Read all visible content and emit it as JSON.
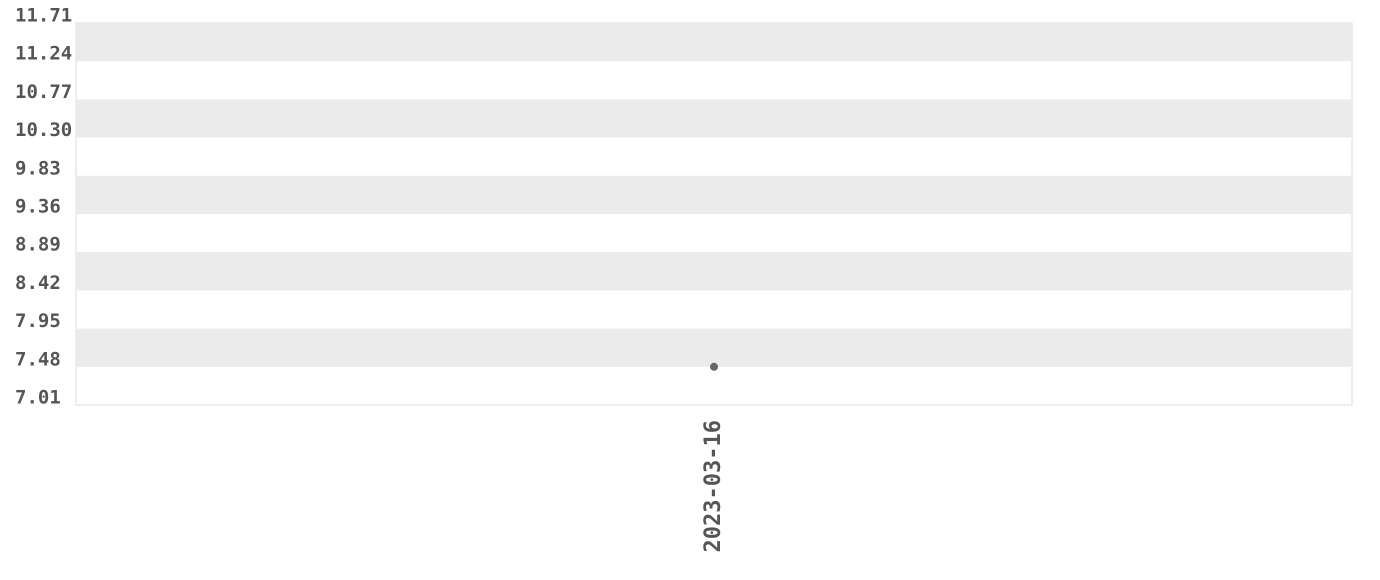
{
  "chart_data": {
    "type": "line",
    "categories": [
      "2023-03-16"
    ],
    "series": [
      {
        "color": "#666666",
        "values": [
          7.48
        ]
      }
    ],
    "ylim": [
      7.01,
      11.71
    ],
    "yticks": [
      7.01,
      7.48,
      7.95,
      8.42,
      8.89,
      9.36,
      9.83,
      {
        "value": 10.3,
        "label": "10.30"
      },
      10.77,
      11.24,
      11.71
    ],
    "grid": true
  }
}
